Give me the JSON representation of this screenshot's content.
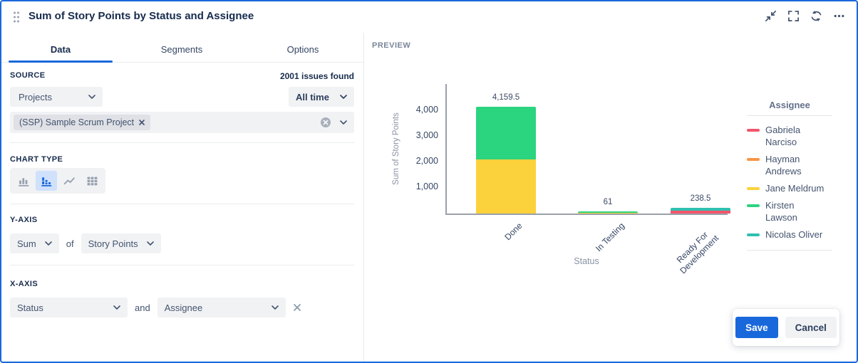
{
  "window": {
    "title": "Sum of Story Points by Status and Assignee",
    "accent_color": "#1868db",
    "toolbar_icons": [
      "drag-handle-icon",
      "collapse-icon",
      "fullscreen-icon",
      "refresh-icon",
      "more-icon"
    ]
  },
  "tabs": [
    {
      "label": "Data",
      "active": true
    },
    {
      "label": "Segments",
      "active": false
    },
    {
      "label": "Options",
      "active": false
    }
  ],
  "panel": {
    "source": {
      "label": "SOURCE",
      "issues_found": "2001 issues found",
      "projects_dropdown": "Projects",
      "time_dropdown": "All time",
      "selected_project": "(SSP) Sample Scrum Project"
    },
    "chart_type": {
      "label": "CHART TYPE",
      "options": [
        "bar-chart",
        "stacked-bar-chart",
        "line-chart",
        "table"
      ],
      "selected_index": 1
    },
    "y_axis": {
      "label": "Y-AXIS",
      "aggregation": "Sum",
      "of_label": "of",
      "field": "Story Points"
    },
    "x_axis": {
      "label": "X-AXIS",
      "primary": "Status",
      "and_label": "and",
      "secondary": "Assignee"
    }
  },
  "preview": {
    "label": "PREVIEW"
  },
  "chart_data": {
    "type": "bar",
    "stacked": true,
    "title": "",
    "xlabel": "Status",
    "ylabel": "Sum of Story Points",
    "categories": [
      "Done",
      "In Testing",
      "Ready For Development"
    ],
    "series": [
      {
        "name": "Gabriela Narciso",
        "color": "#f2566b",
        "values": [
          0,
          0,
          120
        ]
      },
      {
        "name": "Hayman Andrews",
        "color": "#f79645",
        "values": [
          0,
          0,
          0
        ]
      },
      {
        "name": "Jane Meldrum",
        "color": "#fbd13c",
        "values": [
          2100,
          11,
          0
        ]
      },
      {
        "name": "Kirsten Lawson",
        "color": "#2bd47f",
        "values": [
          2059.5,
          50,
          0
        ]
      },
      {
        "name": "Nicolas Oliver",
        "color": "#2fc0b0",
        "values": [
          0,
          0,
          118.5
        ]
      }
    ],
    "totals": [
      4159.5,
      61,
      238.5
    ],
    "total_labels": [
      "4,159.5",
      "61",
      "238.5"
    ],
    "yticks": [
      {
        "value": 1000,
        "label": "1,000"
      },
      {
        "value": 2000,
        "label": "2,000"
      },
      {
        "value": 3000,
        "label": "3,000"
      },
      {
        "value": 4000,
        "label": "4,000"
      }
    ],
    "ylim": [
      0,
      5000
    ],
    "grid": false,
    "legend_title": "Assignee",
    "legend_position": "right"
  },
  "actions": {
    "save": "Save",
    "cancel": "Cancel"
  }
}
